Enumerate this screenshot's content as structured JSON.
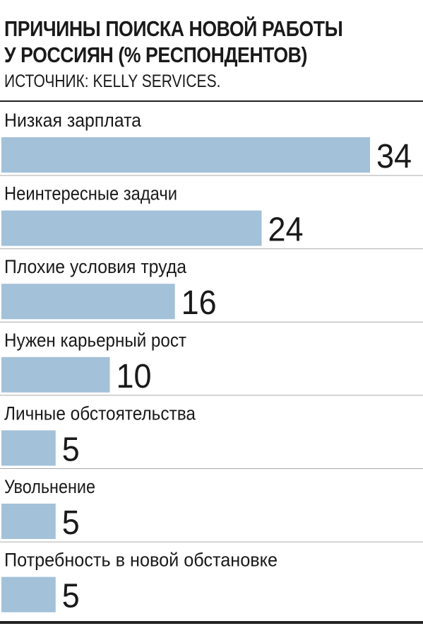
{
  "header": {
    "title": "ПРИЧИНЫ ПОИСКА НОВОЙ РАБОТЫ\nУ РОССИЯН (% РЕСПОНДЕНТОВ)",
    "source": "ИСТОЧНИК: KELLY SERVICES."
  },
  "colors": {
    "bar": "#a3c1d9",
    "divider": "#aaaaaa",
    "rule": "#222222"
  },
  "chart_data": {
    "type": "bar",
    "orientation": "horizontal",
    "title": "ПРИЧИНЫ ПОИСКА НОВОЙ РАБОТЫ У РОССИЯН (% РЕСПОНДЕНТОВ)",
    "categories": [
      "Низкая зарплата",
      "Неинтересные задачи",
      "Плохие условия труда",
      "Нужен карьерный рост",
      "Личные обстоятельства",
      "Увольнение",
      "Потребность в новой обстановке"
    ],
    "values": [
      34,
      24,
      16,
      10,
      5,
      5,
      5
    ],
    "value_labels": [
      "34",
      "24",
      "16",
      "10",
      "5",
      "5",
      "5"
    ],
    "unit": "%",
    "xlim": [
      0,
      34
    ],
    "grid": false,
    "legend": "none"
  }
}
